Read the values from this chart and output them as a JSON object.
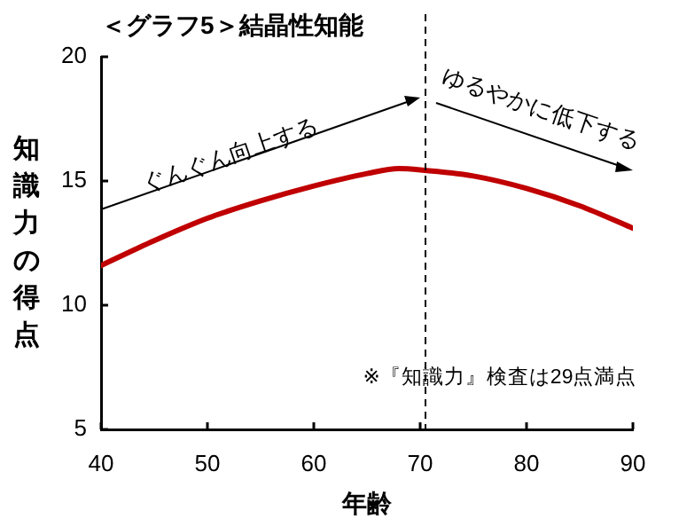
{
  "chart_data": {
    "type": "line",
    "title": "＜グラフ5＞結晶性知能",
    "xlabel": "年齢",
    "ylabel": "知識力の得点",
    "x": [
      40,
      45,
      50,
      55,
      60,
      65,
      68,
      70,
      75,
      80,
      85,
      90
    ],
    "series": [
      {
        "color": "#c00000",
        "values": [
          11.6,
          12.6,
          13.5,
          14.2,
          14.8,
          15.3,
          15.5,
          15.45,
          15.2,
          14.7,
          14.0,
          13.1
        ]
      }
    ],
    "xlim": [
      40,
      90
    ],
    "xticks": [
      40,
      50,
      60,
      70,
      80,
      90
    ],
    "ylim": [
      5,
      20
    ],
    "yticks": [
      5,
      10,
      15,
      20
    ],
    "grid": false,
    "legend": false,
    "marker": "none",
    "line_style": "solid",
    "ref_lines": [
      {
        "axis": "x",
        "value": 70.5,
        "color": "#000000",
        "line_style": "dashed"
      }
    ],
    "annotations": [
      "ぐんぐん向上する",
      "ゆるやかに低下する",
      "※『知識力』検査は29点満点"
    ]
  }
}
